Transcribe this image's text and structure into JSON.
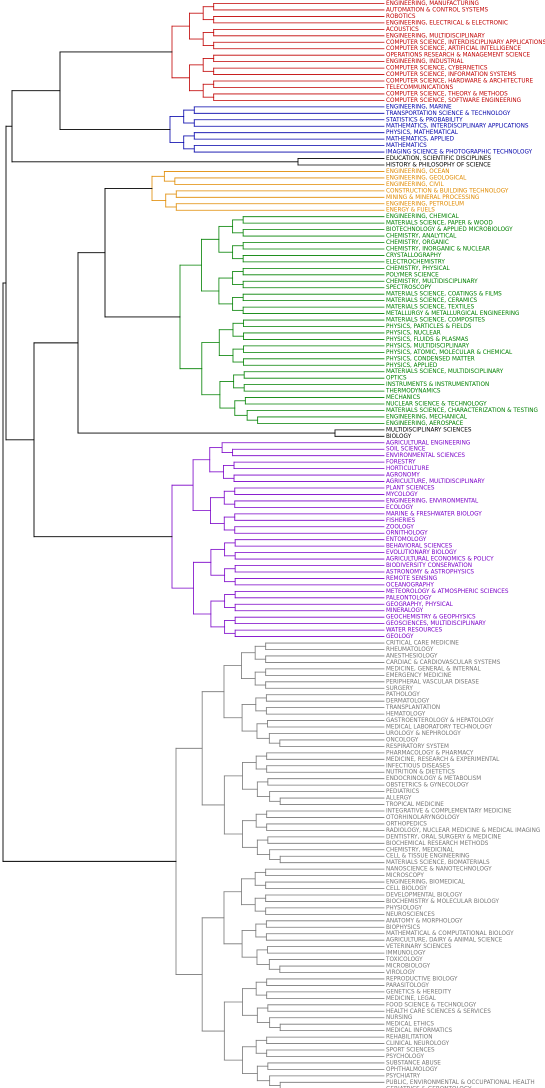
{
  "diagram": {
    "type": "dendrogram",
    "orientation": "left-to-right",
    "colors": {
      "red": "#c00000",
      "blue": "#0000aa",
      "black": "#000000",
      "orange": "#e08a00",
      "green": "#008000",
      "purple": "#7a00c8",
      "gray": "#777777"
    },
    "groups": [
      {
        "color": "red",
        "leaves": [
          "ENGINEERING, MANUFACTURING",
          "AUTOMATION & CONTROL SYSTEMS",
          "ROBOTICS",
          "ENGINEERING, ELECTRICAL & ELECTRONIC",
          "ACOUSTICS",
          "ENGINEERING, MULTIDISCIPLINARY",
          "COMPUTER SCIENCE, INTERDISCIPLINARY APPLICATIONS",
          "COMPUTER SCIENCE, ARTIFICIAL INTELLIGENCE",
          "OPERATIONS RESEARCH & MANAGEMENT SCIENCE",
          "ENGINEERING, INDUSTRIAL",
          "COMPUTER SCIENCE, CYBERNETICS",
          "COMPUTER SCIENCE, INFORMATION SYSTEMS",
          "COMPUTER SCIENCE, HARDWARE & ARCHITECTURE",
          "TELECOMMUNICATIONS",
          "COMPUTER SCIENCE, THEORY & METHODS",
          "COMPUTER SCIENCE, SOFTWARE ENGINEERING"
        ]
      },
      {
        "color": "blue",
        "leaves": [
          "ENGINEERING, MARINE",
          "TRANSPORTATION SCIENCE & TECHNOLOGY",
          "STATISTICS & PROBABILITY",
          "MATHEMATICS, INTERDISCIPLINARY APPLICATIONS",
          "PHYSICS, MATHEMATICAL",
          "MATHEMATICS, APPLIED",
          "MATHEMATICS",
          "IMAGING SCIENCE & PHOTOGRAPHIC TECHNOLOGY"
        ]
      },
      {
        "color": "black",
        "leaves": [
          "EDUCATION, SCIENTIFIC DISCIPLINES",
          "HISTORY & PHILOSOPHY OF SCIENCE"
        ]
      },
      {
        "color": "orange",
        "leaves": [
          "ENGINEERING, OCEAN",
          "ENGINEERING, GEOLOGICAL",
          "ENGINEERING, CIVIL",
          "CONSTRUCTION & BUILDING TECHNOLOGY",
          "MINING & MINERAL PROCESSING",
          "ENGINEERING, PETROLEUM",
          "ENERGY & FUELS"
        ]
      },
      {
        "color": "green",
        "leaves": [
          "ENGINEERING, CHEMICAL",
          "MATERIALS SCIENCE, PAPER & WOOD",
          "BIOTECHNOLOGY & APPLIED MICROBIOLOGY",
          "CHEMISTRY, ANALYTICAL",
          "CHEMISTRY, ORGANIC",
          "CHEMISTRY, INORGANIC & NUCLEAR",
          "CRYSTALLOGRAPHY",
          "ELECTROCHEMISTRY",
          "CHEMISTRY, PHYSICAL",
          "POLYMER SCIENCE",
          "CHEMISTRY, MULTIDISCIPLINARY",
          "SPECTROSCOPY",
          "MATERIALS SCIENCE, COATINGS & FILMS",
          "MATERIALS SCIENCE, CERAMICS",
          "MATERIALS SCIENCE, TEXTILES",
          "METALLURGY & METALLURGICAL ENGINEERING",
          "MATERIALS SCIENCE, COMPOSITES",
          "PHYSICS, PARTICLES & FIELDS",
          "PHYSICS, NUCLEAR",
          "PHYSICS, FLUIDS & PLASMAS",
          "PHYSICS, MULTIDISCIPLINARY",
          "PHYSICS, ATOMIC, MOLECULAR & CHEMICAL",
          "PHYSICS, CONDENSED MATTER",
          "PHYSICS, APPLIED",
          "MATERIALS SCIENCE, MULTIDISCIPLINARY",
          "OPTICS",
          "INSTRUMENTS & INSTRUMENTATION",
          "THERMODYNAMICS",
          "MECHANICS",
          "NUCLEAR SCIENCE & TECHNOLOGY",
          "MATERIALS SCIENCE, CHARACTERIZATION & TESTING",
          "ENGINEERING, MECHANICAL",
          "ENGINEERING, AEROSPACE"
        ]
      },
      {
        "color": "black",
        "leaves": [
          "MULTIDISCIPLINARY SCIENCES",
          "BIOLOGY"
        ]
      },
      {
        "color": "purple",
        "leaves": [
          "AGRICULTURAL ENGINEERING",
          "SOIL SCIENCE",
          "ENVIRONMENTAL SCIENCES",
          "FORESTRY",
          "HORTICULTURE",
          "AGRONOMY",
          "AGRICULTURE, MULTIDISCIPLINARY",
          "PLANT SCIENCES",
          "MYCOLOGY",
          "ENGINEERING, ENVIRONMENTAL",
          "ECOLOGY",
          "MARINE & FRESHWATER BIOLOGY",
          "FISHERIES",
          "ZOOLOGY",
          "ORNITHOLOGY",
          "ENTOMOLOGY",
          "BEHAVIORAL SCIENCES",
          "EVOLUTIONARY BIOLOGY",
          "AGRICULTURAL ECONOMICS & POLICY",
          "BIODIVERSITY CONSERVATION",
          "ASTRONOMY & ASTROPHYSICS",
          "REMOTE SENSING",
          "OCEANOGRAPHY",
          "METEOROLOGY & ATMOSPHERIC SCIENCES",
          "PALEONTOLOGY",
          "GEOGRAPHY, PHYSICAL",
          "MINERALOGY",
          "GEOCHEMISTRY & GEOPHYSICS",
          "GEOSCIENCES, MULTIDISCIPLINARY",
          "WATER RESOURCES",
          "GEOLOGY"
        ]
      },
      {
        "color": "gray",
        "leaves": [
          "CRITICAL CARE MEDICINE",
          "RHEUMATOLOGY",
          "ANESTHESIOLOGY",
          "CARDIAC & CARDIOVASCULAR SYSTEMS",
          "MEDICINE, GENERAL & INTERNAL",
          "EMERGENCY MEDICINE",
          "PERIPHERAL VASCULAR DISEASE",
          "SURGERY",
          "PATHOLOGY",
          "DERMATOLOGY",
          "TRANSPLANTATION",
          "HEMATOLOGY",
          "GASTROENTEROLOGY & HEPATOLOGY",
          "MEDICAL LABORATORY TECHNOLOGY",
          "UROLOGY & NEPHROLOGY",
          "ONCOLOGY",
          "RESPIRATORY SYSTEM",
          "PHARMACOLOGY & PHARMACY",
          "MEDICINE, RESEARCH & EXPERIMENTAL",
          "INFECTIOUS DISEASES",
          "NUTRITION & DIETETICS",
          "ENDOCRINOLOGY & METABOLISM",
          "OBSTETRICS & GYNECOLOGY",
          "PEDIATRICS",
          "ALLERGY",
          "TROPICAL MEDICINE",
          "INTEGRATIVE & COMPLEMENTARY MEDICINE",
          "OTORHINOLARYNGOLOGY",
          "ORTHOPEDICS",
          "RADIOLOGY, NUCLEAR MEDICINE & MEDICAL IMAGING",
          "DENTISTRY, ORAL SURGERY & MEDICINE",
          "BIOCHEMICAL RESEARCH METHODS",
          "CHEMISTRY, MEDICINAL",
          "CELL & TISSUE ENGINEERING",
          "MATERIALS SCIENCE, BIOMATERIALS",
          "NANOSCIENCE & NANOTECHNOLOGY",
          "MICROSCOPY",
          "ENGINEERING, BIOMEDICAL",
          "CELL BIOLOGY",
          "DEVELOPMENTAL BIOLOGY",
          "BIOCHEMISTRY & MOLECULAR BIOLOGY",
          "PHYSIOLOGY",
          "NEUROSCIENCES",
          "ANATOMY & MORPHOLOGY",
          "BIOPHYSICS",
          "MATHEMATICAL & COMPUTATIONAL BIOLOGY",
          "AGRICULTURE, DAIRY & ANIMAL SCIENCE",
          "VETERINARY SCIENCES",
          "IMMUNOLOGY",
          "TOXICOLOGY",
          "MICROBIOLOGY",
          "VIROLOGY",
          "REPRODUCTIVE BIOLOGY",
          "PARASITOLOGY",
          "GENETICS & HEREDITY",
          "MEDICINE, LEGAL",
          "FOOD SCIENCE & TECHNOLOGY",
          "HEALTH CARE SCIENCES & SERVICES",
          "NURSING",
          "MEDICAL ETHICS",
          "MEDICAL INFORMATICS",
          "REHABILITATION",
          "CLINICAL NEUROLOGY",
          "SPORT SCIENCES",
          "PSYCHOLOGY",
          "SUBSTANCE ABUSE",
          "OPHTHALMOLOGY",
          "PSYCHIATRY",
          "PUBLIC, ENVIRONMENTAL & OCCUPATIONAL HEALTH",
          "GERIATRICS & GERONTOLOGY"
        ]
      }
    ]
  }
}
